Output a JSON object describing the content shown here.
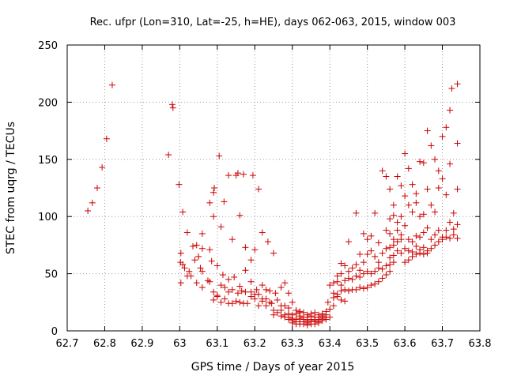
{
  "chart_data": {
    "type": "scatter",
    "title": "Rec. ufpr (Lon=310, Lat=-25, h=HE), days 062-063, 2015, window 003",
    "xlabel": "GPS time / Days of year 2015",
    "ylabel": "STEC from uqrg / TECUs",
    "xlim": [
      62.7,
      63.8
    ],
    "ylim": [
      0,
      250
    ],
    "x_ticks": [
      "62.7",
      "62.8",
      "62.9",
      "63",
      "63.1",
      "63.2",
      "63.3",
      "63.4",
      "63.5",
      "63.6",
      "63.7",
      "63.8"
    ],
    "y_ticks": [
      "0",
      "50",
      "100",
      "150",
      "200",
      "250"
    ],
    "grid": true,
    "legend": "none",
    "marker": "+",
    "marker_color": "#cc0000",
    "points": [
      [
        62.755,
        105
      ],
      [
        62.767,
        112
      ],
      [
        62.78,
        125
      ],
      [
        62.793,
        143
      ],
      [
        62.805,
        168
      ],
      [
        62.82,
        215
      ],
      [
        62.97,
        154
      ],
      [
        62.98,
        198
      ],
      [
        62.982,
        195
      ],
      [
        62.998,
        128
      ],
      [
        63.008,
        104
      ],
      [
        63.02,
        86
      ],
      [
        63.035,
        74
      ],
      [
        63.05,
        65
      ],
      [
        63.06,
        85
      ],
      [
        63.003,
        68
      ],
      [
        63.013,
        55
      ],
      [
        63.03,
        48
      ],
      [
        63.045,
        42
      ],
      [
        63.06,
        38
      ],
      [
        63.075,
        44
      ],
      [
        63.002,
        60
      ],
      [
        63.008,
        58
      ],
      [
        63.02,
        48
      ],
      [
        63.04,
        62
      ],
      [
        63.055,
        55
      ],
      [
        63.06,
        52
      ],
      [
        63.003,
        42
      ],
      [
        63.025,
        52
      ],
      [
        63.045,
        75
      ],
      [
        63.06,
        72
      ],
      [
        63.08,
        112
      ],
      [
        63.09,
        121
      ],
      [
        63.092,
        125
      ],
      [
        63.105,
        153
      ],
      [
        63.118,
        113
      ],
      [
        63.13,
        136
      ],
      [
        63.15,
        136
      ],
      [
        63.155,
        138
      ],
      [
        63.17,
        137
      ],
      [
        63.195,
        136
      ],
      [
        63.21,
        124
      ],
      [
        63.09,
        100
      ],
      [
        63.11,
        91
      ],
      [
        63.14,
        80
      ],
      [
        63.16,
        101
      ],
      [
        63.175,
        73
      ],
      [
        63.19,
        62
      ],
      [
        63.2,
        71
      ],
      [
        63.22,
        86
      ],
      [
        63.235,
        78
      ],
      [
        63.25,
        68
      ],
      [
        63.08,
        71
      ],
      [
        63.085,
        61
      ],
      [
        63.1,
        57
      ],
      [
        63.115,
        49
      ],
      [
        63.13,
        45
      ],
      [
        63.145,
        47
      ],
      [
        63.16,
        39
      ],
      [
        63.175,
        53
      ],
      [
        63.19,
        43
      ],
      [
        63.205,
        36
      ],
      [
        63.22,
        40
      ],
      [
        63.08,
        43
      ],
      [
        63.09,
        34
      ],
      [
        63.1,
        31
      ],
      [
        63.11,
        40
      ],
      [
        63.12,
        38
      ],
      [
        63.13,
        34
      ],
      [
        63.14,
        36
      ],
      [
        63.155,
        33
      ],
      [
        63.165,
        35
      ],
      [
        63.175,
        34
      ],
      [
        63.19,
        34
      ],
      [
        63.2,
        32
      ],
      [
        63.21,
        32
      ],
      [
        63.22,
        28
      ],
      [
        63.23,
        28
      ],
      [
        63.24,
        35
      ],
      [
        63.255,
        33
      ],
      [
        63.27,
        38
      ],
      [
        63.28,
        42
      ],
      [
        63.29,
        33
      ],
      [
        63.3,
        25
      ],
      [
        63.31,
        18
      ],
      [
        63.32,
        17
      ],
      [
        63.09,
        27
      ],
      [
        63.1,
        30
      ],
      [
        63.11,
        25
      ],
      [
        63.12,
        28
      ],
      [
        63.13,
        24
      ],
      [
        63.14,
        24
      ],
      [
        63.15,
        26
      ],
      [
        63.16,
        25
      ],
      [
        63.17,
        24
      ],
      [
        63.18,
        24
      ],
      [
        63.19,
        30
      ],
      [
        63.2,
        28
      ],
      [
        63.21,
        22
      ],
      [
        63.22,
        26
      ],
      [
        63.23,
        22
      ],
      [
        63.24,
        25
      ],
      [
        63.25,
        18
      ],
      [
        63.26,
        16
      ],
      [
        63.27,
        22
      ],
      [
        63.28,
        14
      ],
      [
        63.29,
        20
      ],
      [
        63.3,
        14
      ],
      [
        63.23,
        36
      ],
      [
        63.245,
        24
      ],
      [
        63.26,
        27
      ],
      [
        63.27,
        18
      ],
      [
        63.28,
        22
      ],
      [
        63.29,
        15
      ],
      [
        63.25,
        14
      ],
      [
        63.27,
        13
      ],
      [
        63.28,
        12
      ],
      [
        63.29,
        10
      ],
      [
        63.3,
        9
      ],
      [
        63.31,
        8
      ],
      [
        63.32,
        8
      ],
      [
        63.33,
        8
      ],
      [
        63.34,
        7
      ],
      [
        63.35,
        8
      ],
      [
        63.36,
        9
      ],
      [
        63.37,
        10
      ],
      [
        63.38,
        11
      ],
      [
        63.39,
        12
      ],
      [
        63.29,
        12
      ],
      [
        63.3,
        11
      ],
      [
        63.31,
        10
      ],
      [
        63.32,
        11
      ],
      [
        63.33,
        10
      ],
      [
        63.34,
        9
      ],
      [
        63.35,
        10
      ],
      [
        63.36,
        9
      ],
      [
        63.37,
        8
      ],
      [
        63.38,
        9
      ],
      [
        63.39,
        10
      ],
      [
        63.4,
        12
      ],
      [
        63.31,
        15
      ],
      [
        63.32,
        16
      ],
      [
        63.33,
        16
      ],
      [
        63.34,
        14
      ],
      [
        63.35,
        15
      ],
      [
        63.36,
        16
      ],
      [
        63.37,
        14
      ],
      [
        63.38,
        15
      ],
      [
        63.39,
        17
      ],
      [
        63.4,
        19
      ],
      [
        63.41,
        22
      ],
      [
        63.3,
        7
      ],
      [
        63.31,
        6
      ],
      [
        63.32,
        6
      ],
      [
        63.33,
        6
      ],
      [
        63.34,
        5
      ],
      [
        63.35,
        6
      ],
      [
        63.36,
        6
      ],
      [
        63.37,
        7
      ],
      [
        63.32,
        13
      ],
      [
        63.33,
        12
      ],
      [
        63.34,
        12
      ],
      [
        63.35,
        13
      ],
      [
        63.36,
        12
      ],
      [
        63.37,
        12
      ],
      [
        63.38,
        13
      ],
      [
        63.39,
        14
      ],
      [
        63.395,
        25
      ],
      [
        63.41,
        29
      ],
      [
        63.42,
        32
      ],
      [
        63.43,
        35
      ],
      [
        63.44,
        36
      ],
      [
        63.45,
        35
      ],
      [
        63.46,
        36
      ],
      [
        63.47,
        36
      ],
      [
        63.48,
        38
      ],
      [
        63.49,
        37
      ],
      [
        63.5,
        38
      ],
      [
        63.51,
        40
      ],
      [
        63.52,
        41
      ],
      [
        63.53,
        43
      ],
      [
        63.54,
        46
      ],
      [
        63.55,
        49
      ],
      [
        63.56,
        52
      ],
      [
        63.4,
        40
      ],
      [
        63.41,
        42
      ],
      [
        63.42,
        43
      ],
      [
        63.43,
        40
      ],
      [
        63.44,
        44
      ],
      [
        63.45,
        46
      ],
      [
        63.46,
        45
      ],
      [
        63.47,
        48
      ],
      [
        63.48,
        47
      ],
      [
        63.49,
        50
      ],
      [
        63.5,
        52
      ],
      [
        63.51,
        50
      ],
      [
        63.52,
        52
      ],
      [
        63.53,
        55
      ],
      [
        63.54,
        54
      ],
      [
        63.55,
        57
      ],
      [
        63.56,
        58
      ],
      [
        63.57,
        60
      ],
      [
        63.42,
        48
      ],
      [
        63.43,
        50
      ],
      [
        63.44,
        57
      ],
      [
        63.45,
        52
      ],
      [
        63.46,
        55
      ],
      [
        63.47,
        58
      ],
      [
        63.48,
        53
      ],
      [
        63.49,
        60
      ],
      [
        63.5,
        67
      ],
      [
        63.51,
        70
      ],
      [
        63.52,
        65
      ],
      [
        63.53,
        60
      ],
      [
        63.54,
        68
      ],
      [
        63.55,
        72
      ],
      [
        63.56,
        73
      ],
      [
        63.57,
        75
      ],
      [
        63.58,
        78
      ],
      [
        63.59,
        80
      ],
      [
        63.41,
        33
      ],
      [
        63.42,
        30
      ],
      [
        63.43,
        27
      ],
      [
        63.44,
        26
      ],
      [
        63.43,
        59
      ],
      [
        63.45,
        78
      ],
      [
        63.47,
        103
      ],
      [
        63.48,
        67
      ],
      [
        63.49,
        85
      ],
      [
        63.5,
        80
      ],
      [
        63.51,
        83
      ],
      [
        63.52,
        103
      ],
      [
        63.53,
        77
      ],
      [
        63.54,
        140
      ],
      [
        63.55,
        135
      ],
      [
        63.56,
        124
      ],
      [
        63.57,
        110
      ],
      [
        63.58,
        135
      ],
      [
        63.59,
        127
      ],
      [
        63.6,
        155
      ],
      [
        63.61,
        142
      ],
      [
        63.62,
        128
      ],
      [
        63.63,
        120
      ],
      [
        63.64,
        148
      ],
      [
        63.65,
        147
      ],
      [
        63.66,
        175
      ],
      [
        63.67,
        162
      ],
      [
        63.68,
        150
      ],
      [
        63.69,
        140
      ],
      [
        63.7,
        170
      ],
      [
        63.71,
        178
      ],
      [
        63.72,
        193
      ],
      [
        63.725,
        212
      ],
      [
        63.74,
        216
      ],
      [
        63.74,
        164
      ],
      [
        63.74,
        124
      ],
      [
        63.56,
        98
      ],
      [
        63.57,
        101
      ],
      [
        63.58,
        95
      ],
      [
        63.59,
        100
      ],
      [
        63.6,
        118
      ],
      [
        63.61,
        110
      ],
      [
        63.62,
        104
      ],
      [
        63.63,
        112
      ],
      [
        63.64,
        100
      ],
      [
        63.65,
        102
      ],
      [
        63.66,
        124
      ],
      [
        63.67,
        110
      ],
      [
        63.68,
        104
      ],
      [
        63.69,
        125
      ],
      [
        63.7,
        133
      ],
      [
        63.71,
        119
      ],
      [
        63.72,
        146
      ],
      [
        63.73,
        103
      ],
      [
        63.55,
        88
      ],
      [
        63.56,
        85
      ],
      [
        63.57,
        80
      ],
      [
        63.58,
        88
      ],
      [
        63.59,
        84
      ],
      [
        63.6,
        92
      ],
      [
        63.61,
        80
      ],
      [
        63.62,
        78
      ],
      [
        63.63,
        83
      ],
      [
        63.64,
        82
      ],
      [
        63.65,
        86
      ],
      [
        63.66,
        90
      ],
      [
        63.67,
        80
      ],
      [
        63.68,
        84
      ],
      [
        63.69,
        88
      ],
      [
        63.7,
        82
      ],
      [
        63.71,
        88
      ],
      [
        63.72,
        95
      ],
      [
        63.73,
        89
      ],
      [
        63.74,
        93
      ],
      [
        63.56,
        64
      ],
      [
        63.57,
        66
      ],
      [
        63.58,
        70
      ],
      [
        63.59,
        68
      ],
      [
        63.6,
        72
      ],
      [
        63.61,
        70
      ],
      [
        63.62,
        69
      ],
      [
        63.63,
        74
      ],
      [
        63.64,
        71
      ],
      [
        63.65,
        73
      ],
      [
        63.66,
        70
      ],
      [
        63.67,
        72
      ],
      [
        63.68,
        75
      ],
      [
        63.69,
        78
      ],
      [
        63.7,
        80
      ],
      [
        63.71,
        82
      ],
      [
        63.72,
        81
      ],
      [
        63.73,
        84
      ],
      [
        63.74,
        81
      ],
      [
        63.6,
        60
      ],
      [
        63.61,
        62
      ],
      [
        63.62,
        65
      ],
      [
        63.63,
        67
      ],
      [
        63.64,
        68
      ],
      [
        63.65,
        67
      ],
      [
        63.66,
        68
      ]
    ]
  }
}
